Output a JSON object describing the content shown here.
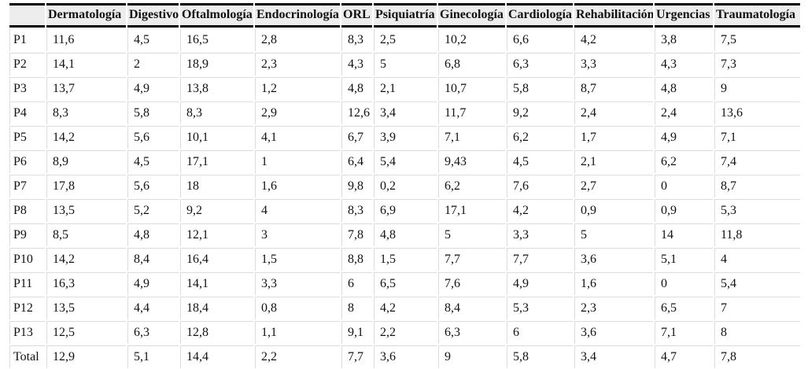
{
  "chart_data": {
    "type": "table",
    "columns": [
      "",
      "Dermatología",
      "Digestivo",
      "Oftalmología",
      "Endocrinología",
      "ORL",
      "Psiquiatría",
      "Ginecología",
      "Cardiología",
      "Rehabilitación",
      "Urgencias",
      "Traumatología"
    ],
    "rows": [
      {
        "label": "P1",
        "values": [
          "11,6",
          "4,5",
          "16,5",
          "2,8",
          "8,3",
          "2,5",
          "10,2",
          "6,6",
          "4,2",
          "3,8",
          "7,5"
        ]
      },
      {
        "label": "P2",
        "values": [
          "14,1",
          "2",
          "18,9",
          "2,3",
          "4,3",
          "5",
          "6,8",
          "6,3",
          "3,3",
          "4,3",
          "7,3"
        ]
      },
      {
        "label": "P3",
        "values": [
          "13,7",
          "4,9",
          "13,8",
          "1,2",
          "4,8",
          "2,1",
          "10,7",
          "5,8",
          "8,7",
          "4,8",
          "9"
        ]
      },
      {
        "label": "P4",
        "values": [
          "8,3",
          "5,8",
          "8,3",
          "2,9",
          "12,6",
          "3,4",
          "11,7",
          "9,2",
          "2,4",
          "2,4",
          "13,6"
        ]
      },
      {
        "label": "P5",
        "values": [
          "14,2",
          "5,6",
          "10,1",
          "4,1",
          "6,7",
          "3,9",
          "7,1",
          "6,2",
          "1,7",
          "4,9",
          "7,1"
        ]
      },
      {
        "label": "P6",
        "values": [
          "8,9",
          "4,5",
          "17,1",
          "1",
          "6,4",
          "5,4",
          "9,43",
          "4,5",
          "2,1",
          "6,2",
          "7,4"
        ]
      },
      {
        "label": "P7",
        "values": [
          "17,8",
          "5,6",
          "18",
          "1,6",
          "9,8",
          "0,2",
          "6,2",
          "7,6",
          "2,7",
          "0",
          "8,7"
        ]
      },
      {
        "label": "P8",
        "values": [
          "13,5",
          "5,2",
          "9,2",
          "4",
          "8,3",
          "6,9",
          "17,1",
          "4,2",
          "0,9",
          "0,9",
          "5,3"
        ]
      },
      {
        "label": "P9",
        "values": [
          "8,5",
          "4,8",
          "12,1",
          "3",
          "7,8",
          "4,8",
          "5",
          "3,3",
          "5",
          "14",
          "11,8"
        ]
      },
      {
        "label": "P10",
        "values": [
          "14,2",
          "8,4",
          "16,4",
          "1,5",
          "8,8",
          "1,5",
          "7,7",
          "7,7",
          "3,6",
          "5,1",
          "4"
        ]
      },
      {
        "label": "P11",
        "values": [
          "16,3",
          "4,9",
          "14,1",
          "3,3",
          "6",
          "6,5",
          "7,6",
          "4,9",
          "1,6",
          "0",
          "5,4"
        ]
      },
      {
        "label": "P12",
        "values": [
          "13,5",
          "4,4",
          "18,4",
          "0,8",
          "8",
          "4,2",
          "8,4",
          "5,3",
          "2,3",
          "6,5",
          "7"
        ]
      },
      {
        "label": "P13",
        "values": [
          "12,5",
          "6,3",
          "12,8",
          "1,1",
          "9,1",
          "2,2",
          "6,3",
          "6",
          "3,6",
          "7,1",
          "8"
        ]
      },
      {
        "label": "Total",
        "values": [
          "12,9",
          "5,1",
          "14,4",
          "2,2",
          "7,7",
          "3,6",
          "9",
          "5,8",
          "3,4",
          "4,7",
          "7,8"
        ]
      }
    ],
    "layout_hints": {
      "header_rules": "black top and bottom per-cell rules",
      "grid": "light gray single lines with border-spacing gaps",
      "legend": "none",
      "title": ""
    }
  },
  "colors": {
    "rule": "#000000",
    "grid": "#dcdcdc",
    "header_bg": "#ededed",
    "text": "#111111"
  }
}
